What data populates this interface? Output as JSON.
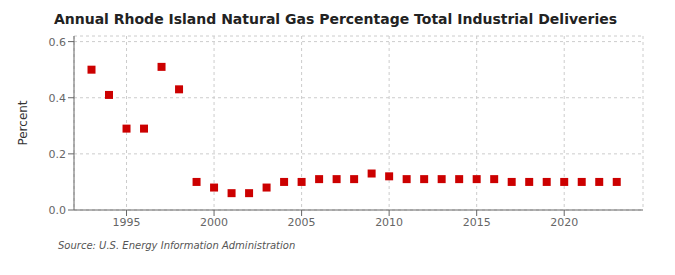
{
  "chart_data": {
    "type": "scatter",
    "title": "Annual Rhode Island Natural Gas Percentage Total Industrial Deliveries",
    "y_label": "Percent",
    "annotation": "Source: U.S. Energy Information Administration",
    "x": [
      1993,
      1994,
      1995,
      1996,
      1997,
      1998,
      1999,
      2000,
      2001,
      2002,
      2003,
      2004,
      2005,
      2006,
      2007,
      2008,
      2009,
      2010,
      2011,
      2012,
      2013,
      2014,
      2015,
      2016,
      2017,
      2018,
      2019,
      2020,
      2021,
      2022,
      2023
    ],
    "values": [
      0.5,
      0.41,
      0.29,
      0.29,
      0.51,
      0.43,
      0.1,
      0.08,
      0.06,
      0.06,
      0.08,
      0.1,
      0.1,
      0.11,
      0.11,
      0.11,
      0.13,
      0.12,
      0.11,
      0.11,
      0.11,
      0.11,
      0.11,
      0.11,
      0.1,
      0.1,
      0.1,
      0.1,
      0.1,
      0.1,
      0.1
    ],
    "color": "#cc0000",
    "marker": "square",
    "xlim": [
      1992.0,
      2024.5
    ],
    "xticks": [
      1995,
      2000,
      2005,
      2010,
      2015,
      2020
    ],
    "ylim": [
      0.0,
      0.62
    ],
    "yticks": [
      {
        "value": 0.0,
        "label": "0.0"
      },
      0.2,
      0.4,
      0.6
    ],
    "grid": true
  }
}
